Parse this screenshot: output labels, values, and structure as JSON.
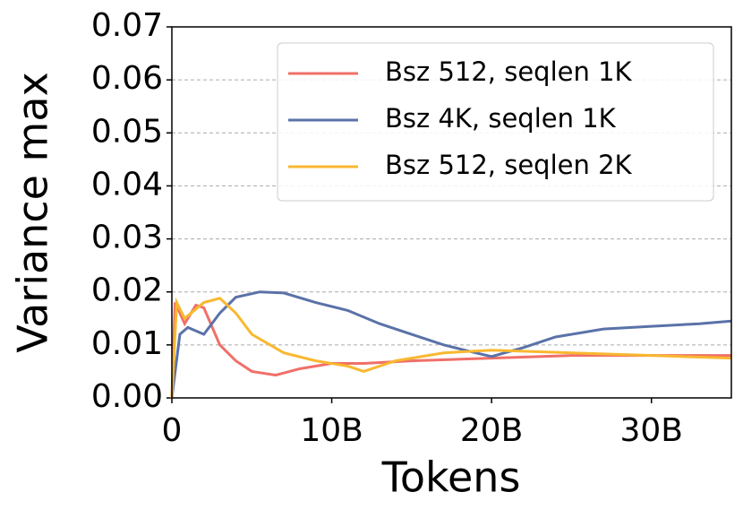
{
  "chart_data": {
    "type": "line",
    "xlabel": "Tokens",
    "ylabel": "Variance max",
    "xlim": [
      0,
      35
    ],
    "ylim": [
      0,
      0.07
    ],
    "xticks": [
      0,
      {
        "value": 10,
        "label": "10B"
      },
      {
        "value": 20,
        "label": "20B"
      },
      {
        "value": 30,
        "label": "30B"
      }
    ],
    "yticks": [
      {
        "value": 0,
        "label": "0.00"
      },
      {
        "value": 0.01,
        "label": "0.01"
      },
      {
        "value": 0.02,
        "label": "0.02"
      },
      {
        "value": 0.03,
        "label": "0.03"
      },
      {
        "value": 0.04,
        "label": "0.04"
      },
      {
        "value": 0.05,
        "label": "0.05"
      },
      {
        "value": 0.06,
        "label": "0.06"
      },
      {
        "value": 0.07,
        "label": "0.07"
      }
    ],
    "grid": true,
    "legend": "upper right",
    "series": [
      {
        "name": "Bsz 512, seqlen 1K",
        "color": "#f07068",
        "x": [
          0,
          0.2,
          0.8,
          1.5,
          2,
          3,
          4,
          5,
          6.5,
          8,
          10,
          12,
          15,
          20,
          25,
          30,
          35
        ],
        "values": [
          0,
          0.018,
          0.014,
          0.0175,
          0.017,
          0.01,
          0.007,
          0.005,
          0.0043,
          0.0055,
          0.0065,
          0.0065,
          0.007,
          0.0075,
          0.008,
          0.008,
          0.008
        ]
      },
      {
        "name": "Bsz 4K, seqlen 1K",
        "color": "#5a72a8",
        "x": [
          0,
          0.5,
          1,
          2,
          3,
          4,
          5.5,
          7,
          9,
          11,
          13,
          15,
          17,
          19,
          20,
          22,
          24,
          27,
          30,
          33,
          35
        ],
        "values": [
          0,
          0.012,
          0.0133,
          0.012,
          0.016,
          0.019,
          0.02,
          0.0198,
          0.018,
          0.0165,
          0.014,
          0.012,
          0.01,
          0.0085,
          0.0078,
          0.0095,
          0.0115,
          0.013,
          0.0135,
          0.014,
          0.0145
        ]
      },
      {
        "name": "Bsz 512, seqlen 2K",
        "color": "#f8b830",
        "x": [
          0,
          0.3,
          0.8,
          2,
          3,
          4,
          5,
          7,
          9,
          10,
          11,
          12,
          14,
          17,
          20,
          25,
          30,
          35
        ],
        "values": [
          0,
          0.018,
          0.015,
          0.018,
          0.0188,
          0.016,
          0.012,
          0.0085,
          0.007,
          0.0065,
          0.006,
          0.005,
          0.007,
          0.0085,
          0.009,
          0.0085,
          0.008,
          0.0075
        ]
      }
    ]
  }
}
